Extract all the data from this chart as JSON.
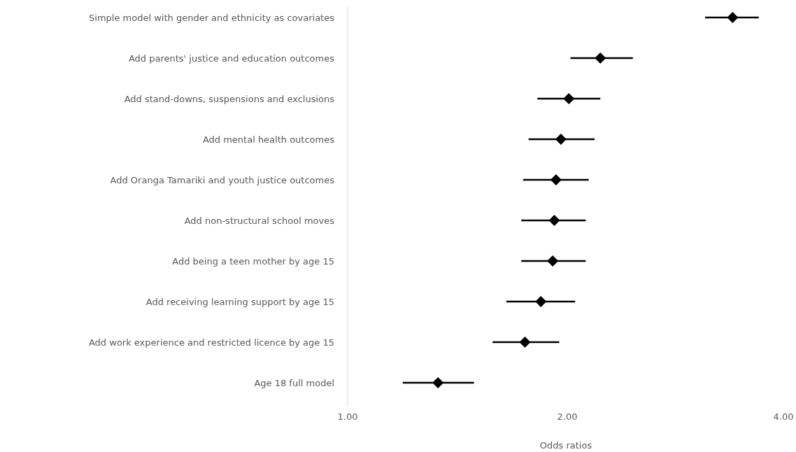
{
  "chart_data": {
    "type": "scatter",
    "orientation": "horizontal",
    "xlabel": "Odds ratios",
    "log": "x",
    "marker": "diamond",
    "grid": false,
    "categories": [
      "Simple model with gender and ethnicity as covariates",
      "Add parents' justice and education outcomes",
      "Add stand-downs, suspensions and exclusions",
      "Add mental health outcomes",
      "Add Oranga Tamariki and youth justice outcomes",
      "Add non-structural school moves",
      "Add being a teen mother by age 15",
      "Add receiving learning support by age 15",
      "Add work experience and restricted licence by age 15",
      "Age 18 full model"
    ],
    "values": [
      3.37,
      2.22,
      2.01,
      1.96,
      1.93,
      1.92,
      1.91,
      1.84,
      1.75,
      1.33
    ],
    "errors": [
      [
        3.09,
        3.66
      ],
      [
        2.02,
        2.46
      ],
      [
        1.82,
        2.22
      ],
      [
        1.77,
        2.18
      ],
      [
        1.74,
        2.14
      ],
      [
        1.73,
        2.12
      ],
      [
        1.73,
        2.12
      ],
      [
        1.65,
        2.05
      ],
      [
        1.58,
        1.95
      ],
      [
        1.19,
        1.49
      ]
    ],
    "color": "#000000",
    "xlim": [
      1,
      4
    ],
    "xticks": [
      {
        "value": 1,
        "label": "1.00"
      },
      {
        "value": 2,
        "label": "2.00"
      },
      {
        "value": 4,
        "label": "4.00"
      }
    ]
  }
}
